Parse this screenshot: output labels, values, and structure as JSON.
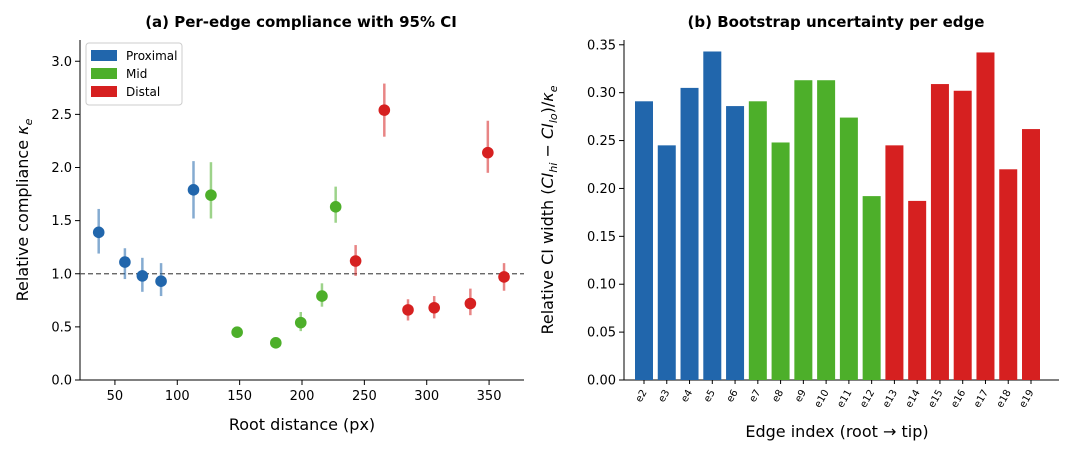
{
  "chart_data": [
    {
      "type": "scatter",
      "title": "(a) Per-edge compliance with 95% CI",
      "xlabel": "Root distance (px)",
      "ylabel": "Relative compliance κ_e",
      "ylabel_main": "Relative compliance ",
      "ylabel_sym": "κ",
      "ylabel_sub": "e",
      "xlim": [
        22,
        378
      ],
      "ylim": [
        0,
        3.2
      ],
      "xticks": [
        "50",
        "100",
        "150",
        "200",
        "250",
        "300",
        "350"
      ],
      "yticks": [
        "0.0",
        "0.5",
        "1.0",
        "1.5",
        "2.0",
        "2.5",
        "3.0"
      ],
      "reference_line": 1.0,
      "legend_position": "top-left",
      "series": [
        {
          "name": "Proximal",
          "color": "#2166ac",
          "points": [
            {
              "x": 37,
              "y": 1.39,
              "lo": 1.19,
              "hi": 1.61
            },
            {
              "x": 58,
              "y": 1.11,
              "lo": 0.95,
              "hi": 1.24
            },
            {
              "x": 72,
              "y": 0.98,
              "lo": 0.83,
              "hi": 1.15
            },
            {
              "x": 87,
              "y": 0.93,
              "lo": 0.79,
              "hi": 1.1
            },
            {
              "x": 113,
              "y": 1.79,
              "lo": 1.52,
              "hi": 2.06
            }
          ]
        },
        {
          "name": "Mid",
          "color": "#4daf2a",
          "points": [
            {
              "x": 127,
              "y": 1.74,
              "lo": 1.52,
              "hi": 2.05
            },
            {
              "x": 148,
              "y": 0.45,
              "lo": 0.4,
              "hi": 0.5
            },
            {
              "x": 179,
              "y": 0.35,
              "lo": 0.31,
              "hi": 0.4
            },
            {
              "x": 199,
              "y": 0.54,
              "lo": 0.46,
              "hi": 0.64
            },
            {
              "x": 216,
              "y": 0.79,
              "lo": 0.69,
              "hi": 0.91
            },
            {
              "x": 227,
              "y": 1.63,
              "lo": 1.48,
              "hi": 1.82
            }
          ]
        },
        {
          "name": "Distal",
          "color": "#d62020",
          "points": [
            {
              "x": 243,
              "y": 1.12,
              "lo": 0.98,
              "hi": 1.27
            },
            {
              "x": 266,
              "y": 2.54,
              "lo": 2.29,
              "hi": 2.79
            },
            {
              "x": 285,
              "y": 0.66,
              "lo": 0.56,
              "hi": 0.76
            },
            {
              "x": 306,
              "y": 0.68,
              "lo": 0.58,
              "hi": 0.79
            },
            {
              "x": 335,
              "y": 0.72,
              "lo": 0.61,
              "hi": 0.86
            },
            {
              "x": 349,
              "y": 2.14,
              "lo": 1.95,
              "hi": 2.44
            },
            {
              "x": 362,
              "y": 0.97,
              "lo": 0.84,
              "hi": 1.1
            }
          ]
        }
      ]
    },
    {
      "type": "bar",
      "title": "(b) Bootstrap uncertainty per edge",
      "xlabel": "Edge index (root → tip)",
      "ylabel": "Relative CI width (CI_hi − CI_lo)/κ_e",
      "ylabel_pre": "Relative CI width (",
      "ylabel_ci": "CI",
      "ylabel_hi": "hi",
      "ylabel_minus": " − ",
      "ylabel_lo": "lo",
      "ylabel_close": ")/",
      "ylabel_sym": "κ",
      "ylabel_sub": "e",
      "ylim": [
        0,
        0.355
      ],
      "yticks": [
        "0.00",
        "0.05",
        "0.10",
        "0.15",
        "0.20",
        "0.25",
        "0.30",
        "0.35"
      ],
      "categories": [
        "e2",
        "e3",
        "e4",
        "e5",
        "e6",
        "e7",
        "e8",
        "e9",
        "e10",
        "e11",
        "e12",
        "e13",
        "e14",
        "e15",
        "e16",
        "e17",
        "e18",
        "e19"
      ],
      "values": [
        0.291,
        0.245,
        0.305,
        0.343,
        0.286,
        0.291,
        0.248,
        0.313,
        0.313,
        0.274,
        0.192,
        0.245,
        0.187,
        0.309,
        0.302,
        0.342,
        0.22,
        0.262
      ],
      "groups": [
        "Proximal",
        "Proximal",
        "Proximal",
        "Proximal",
        "Proximal",
        "Mid",
        "Mid",
        "Mid",
        "Mid",
        "Mid",
        "Mid",
        "Distal",
        "Distal",
        "Distal",
        "Distal",
        "Distal",
        "Distal",
        "Distal"
      ],
      "colors": {
        "Proximal": "#2166ac",
        "Mid": "#4daf2a",
        "Distal": "#d62020"
      }
    }
  ]
}
